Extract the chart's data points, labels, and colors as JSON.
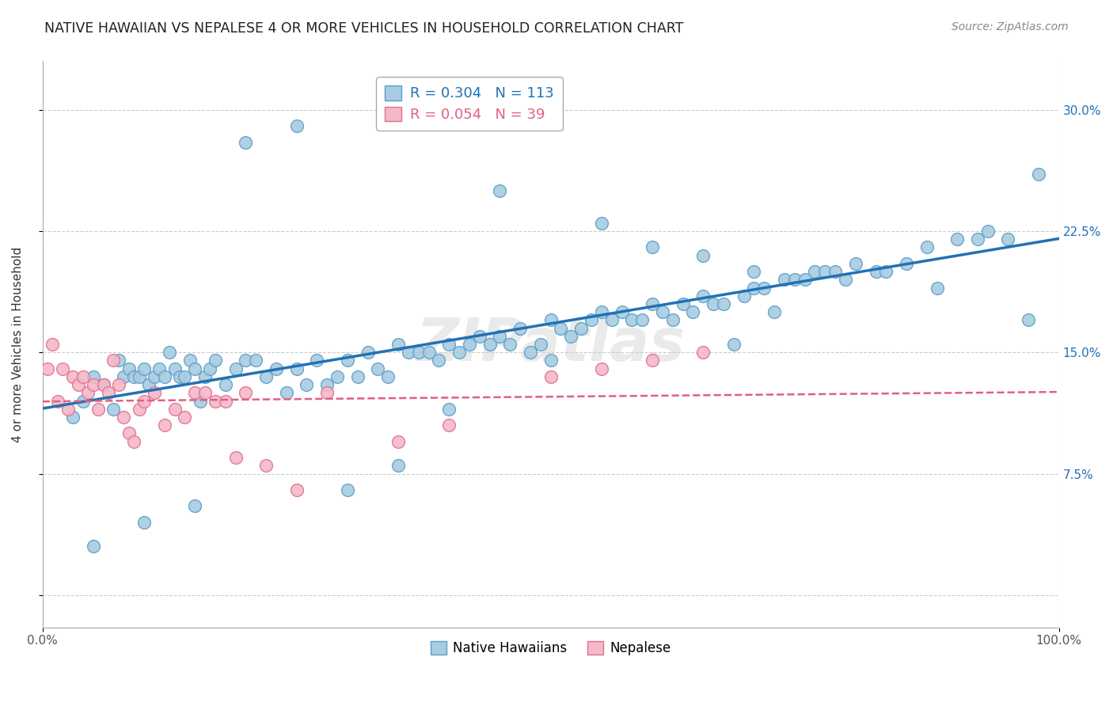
{
  "title": "NATIVE HAWAIIAN VS NEPALESE 4 OR MORE VEHICLES IN HOUSEHOLD CORRELATION CHART",
  "source": "Source: ZipAtlas.com",
  "ylabel": "4 or more Vehicles in Household",
  "yticks": [
    0.0,
    7.5,
    15.0,
    22.5,
    30.0
  ],
  "ytick_labels": [
    "",
    "7.5%",
    "15.0%",
    "22.5%",
    "30.0%"
  ],
  "xlim": [
    0,
    100
  ],
  "ylim": [
    -2,
    33
  ],
  "legend1_r": "0.304",
  "legend1_n": "113",
  "legend2_r": "0.054",
  "legend2_n": "39",
  "color_blue": "#a8cce0",
  "color_pink": "#f4b8c8",
  "color_blue_edge": "#5b9ec9",
  "color_pink_edge": "#e07090",
  "color_blue_line": "#2171b5",
  "color_pink_line": "#e06080",
  "watermark": "ZIPatlas",
  "blue_x": [
    3.0,
    4.0,
    5.0,
    6.0,
    7.0,
    7.5,
    8.0,
    8.5,
    9.0,
    9.5,
    10.0,
    10.5,
    11.0,
    11.5,
    12.0,
    12.5,
    13.0,
    13.5,
    14.0,
    14.5,
    15.0,
    15.5,
    16.0,
    16.5,
    17.0,
    18.0,
    19.0,
    20.0,
    21.0,
    22.0,
    23.0,
    24.0,
    25.0,
    26.0,
    27.0,
    28.0,
    29.0,
    30.0,
    31.0,
    32.0,
    33.0,
    34.0,
    35.0,
    36.0,
    37.0,
    38.0,
    39.0,
    40.0,
    41.0,
    42.0,
    43.0,
    44.0,
    45.0,
    46.0,
    47.0,
    48.0,
    49.0,
    50.0,
    51.0,
    52.0,
    53.0,
    54.0,
    55.0,
    56.0,
    57.0,
    58.0,
    59.0,
    60.0,
    61.0,
    62.0,
    63.0,
    64.0,
    65.0,
    66.0,
    67.0,
    68.0,
    69.0,
    70.0,
    71.0,
    72.0,
    73.0,
    74.0,
    75.0,
    76.0,
    77.0,
    78.0,
    79.0,
    80.0,
    82.0,
    83.0,
    85.0,
    87.0,
    88.0,
    90.0,
    92.0,
    93.0,
    95.0,
    97.0,
    98.0,
    30.0,
    35.0,
    40.0,
    45.0,
    20.0,
    25.0,
    10.0,
    15.0,
    5.0,
    50.0,
    55.0,
    60.0,
    65.0,
    70.0
  ],
  "blue_y": [
    11.0,
    12.0,
    13.5,
    13.0,
    11.5,
    14.5,
    13.5,
    14.0,
    13.5,
    13.5,
    14.0,
    13.0,
    13.5,
    14.0,
    13.5,
    15.0,
    14.0,
    13.5,
    13.5,
    14.5,
    14.0,
    12.0,
    13.5,
    14.0,
    14.5,
    13.0,
    14.0,
    14.5,
    14.5,
    13.5,
    14.0,
    12.5,
    14.0,
    13.0,
    14.5,
    13.0,
    13.5,
    14.5,
    13.5,
    15.0,
    14.0,
    13.5,
    15.5,
    15.0,
    15.0,
    15.0,
    14.5,
    15.5,
    15.0,
    15.5,
    16.0,
    15.5,
    16.0,
    15.5,
    16.5,
    15.0,
    15.5,
    17.0,
    16.5,
    16.0,
    16.5,
    17.0,
    17.5,
    17.0,
    17.5,
    17.0,
    17.0,
    18.0,
    17.5,
    17.0,
    18.0,
    17.5,
    18.5,
    18.0,
    18.0,
    15.5,
    18.5,
    19.0,
    19.0,
    17.5,
    19.5,
    19.5,
    19.5,
    20.0,
    20.0,
    20.0,
    19.5,
    20.5,
    20.0,
    20.0,
    20.5,
    21.5,
    19.0,
    22.0,
    22.0,
    22.5,
    22.0,
    17.0,
    26.0,
    6.5,
    8.0,
    11.5,
    25.0,
    28.0,
    29.0,
    4.5,
    5.5,
    3.0,
    14.5,
    23.0,
    21.5,
    21.0,
    20.0
  ],
  "pink_x": [
    0.5,
    1.0,
    1.5,
    2.0,
    2.5,
    3.0,
    3.5,
    4.0,
    4.5,
    5.0,
    5.5,
    6.0,
    6.5,
    7.0,
    7.5,
    8.0,
    8.5,
    9.0,
    9.5,
    10.0,
    11.0,
    12.0,
    13.0,
    14.0,
    15.0,
    16.0,
    17.0,
    18.0,
    19.0,
    20.0,
    22.0,
    25.0,
    28.0,
    35.0,
    40.0,
    50.0,
    55.0,
    60.0,
    65.0
  ],
  "pink_y": [
    14.0,
    15.5,
    12.0,
    14.0,
    11.5,
    13.5,
    13.0,
    13.5,
    12.5,
    13.0,
    11.5,
    13.0,
    12.5,
    14.5,
    13.0,
    11.0,
    10.0,
    9.5,
    11.5,
    12.0,
    12.5,
    10.5,
    11.5,
    11.0,
    12.5,
    12.5,
    12.0,
    12.0,
    8.5,
    12.5,
    8.0,
    6.5,
    12.5,
    9.5,
    10.5,
    13.5,
    14.0,
    14.5,
    15.0
  ]
}
